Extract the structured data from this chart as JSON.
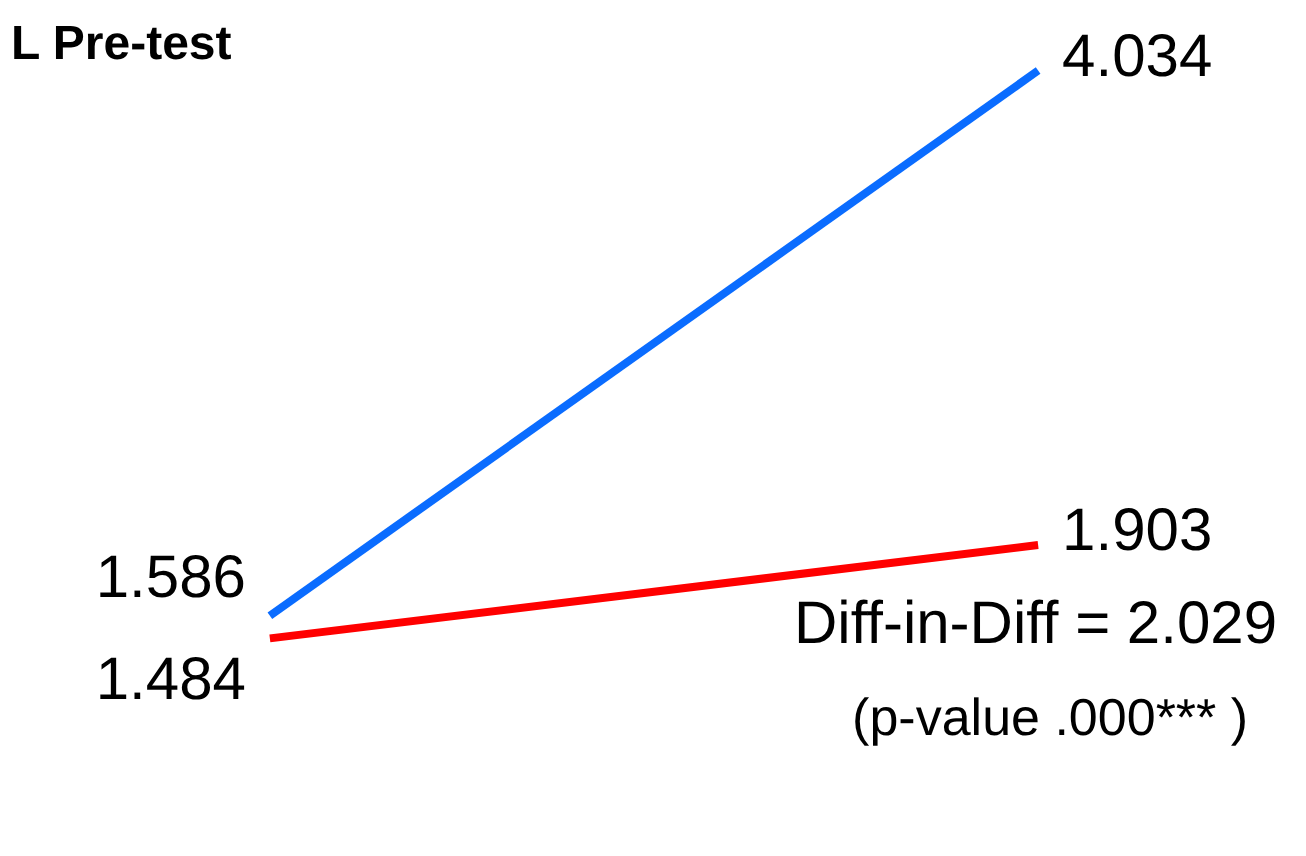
{
  "chart_data": {
    "type": "line",
    "title": "L Pre-test",
    "categories": [
      null,
      null
    ],
    "series": [
      {
        "color": "#0a6cff",
        "values": [
          1.586,
          4.034
        ]
      },
      {
        "color": "#ff0000",
        "values": [
          1.484,
          1.903
        ]
      }
    ],
    "data_labels": true,
    "annotations": [
      "Diff-in-Diff = 2.029",
      "(p-value .000***   )"
    ]
  }
}
